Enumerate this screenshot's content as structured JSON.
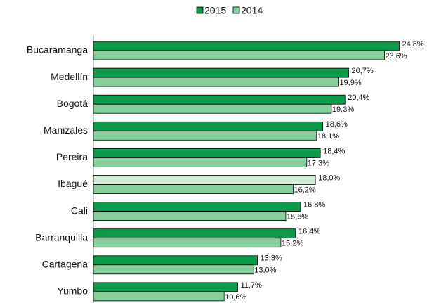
{
  "chart_data": {
    "type": "hbar",
    "categories": [
      "Bucaramanga",
      "Medellín",
      "Bogotá",
      "Manizales",
      "Pereira",
      "Ibagué",
      "Cali",
      "Barranquilla",
      "Cartagena",
      "Yumbo"
    ],
    "series": [
      {
        "name": "2015",
        "color": "#0c9b4b",
        "colors": [
          "#0c9b4b",
          "#0c9b4b",
          "#0c9b4b",
          "#0c9b4b",
          "#0c9b4b",
          "#d4eedb",
          "#0c9b4b",
          "#0c9b4b",
          "#0c9b4b",
          "#0c9b4b"
        ],
        "values": [
          24.8,
          20.7,
          20.4,
          18.6,
          18.4,
          18.0,
          16.8,
          16.4,
          13.3,
          11.7
        ],
        "value_labels": [
          "24,8%",
          "20,7%",
          "20,4%",
          "18,6%",
          "18,4%",
          "18,0%",
          "16,8%",
          "16,4%",
          "13,3%",
          "11,7%"
        ]
      },
      {
        "name": "2014",
        "color": "#86cf9c",
        "values": [
          23.6,
          19.9,
          19.3,
          18.1,
          17.3,
          16.2,
          15.6,
          15.2,
          13.0,
          10.6
        ],
        "value_labels": [
          "23,6%",
          "19,9%",
          "19,3%",
          "18,1%",
          "17,3%",
          "16,2%",
          "15,6%",
          "15,2%",
          "13,0%",
          "10,6%"
        ]
      }
    ],
    "xlim": [
      0,
      25
    ],
    "legend": "top"
  }
}
